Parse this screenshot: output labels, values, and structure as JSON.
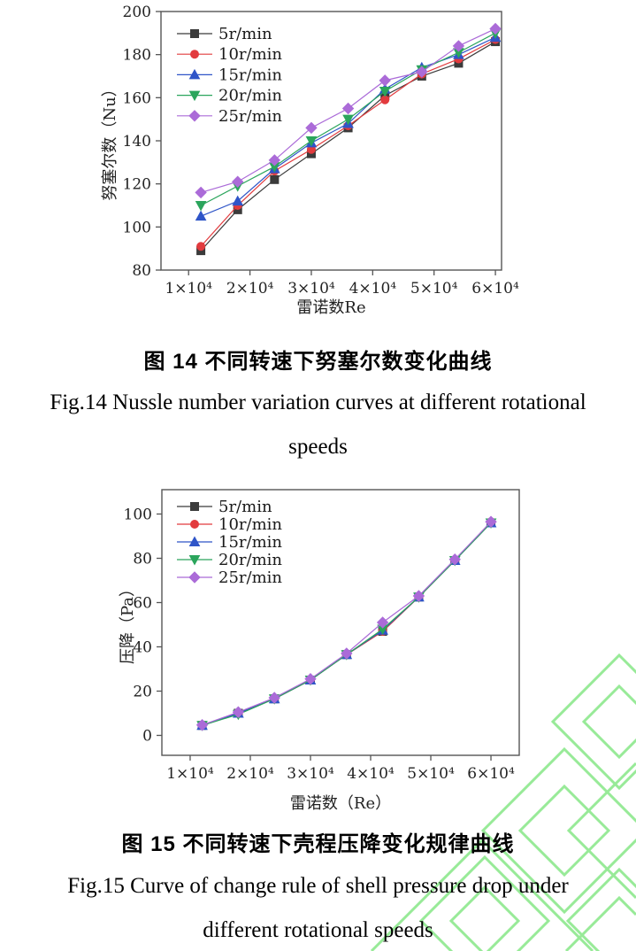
{
  "figure14": {
    "caption_cn": "图 14  不同转速下努塞尔数变化曲线",
    "caption_en_line1": "Fig.14 Nussle number variation curves at different rotational",
    "caption_en_line2": "speeds"
  },
  "figure15": {
    "caption_cn": "图 15  不同转速下壳程压降变化规律曲线",
    "caption_en_line1": "Fig.15 Curve of change rule of shell pressure drop under",
    "caption_en_line2": "different rotational speeds"
  },
  "watermark": {
    "color": "#8de88d"
  },
  "chart_data": [
    {
      "type": "line",
      "title": "",
      "xlabel": "雷诺数Re",
      "ylabel": "努塞尔数（Nu）",
      "grid": false,
      "legend_position": "top-left",
      "xlim": [
        5500,
        61000
      ],
      "ylim": [
        80,
        200
      ],
      "x_ticks": [
        {
          "value": 10000,
          "label": "1×10⁴"
        },
        {
          "value": 20000,
          "label": "2×10⁴"
        },
        {
          "value": 30000,
          "label": "3×10⁴"
        },
        {
          "value": 40000,
          "label": "4×10⁴"
        },
        {
          "value": 50000,
          "label": "5×10⁴"
        },
        {
          "value": 60000,
          "label": "6×10⁴"
        }
      ],
      "y_ticks": [
        {
          "value": 80,
          "label": "80"
        },
        {
          "value": 100,
          "label": "100"
        },
        {
          "value": 120,
          "label": "120"
        },
        {
          "value": 140,
          "label": "140"
        },
        {
          "value": 160,
          "label": "160"
        },
        {
          "value": 180,
          "label": "180"
        },
        {
          "value": 200,
          "label": "200"
        }
      ],
      "x": [
        12000,
        18000,
        24000,
        30000,
        36000,
        42000,
        48000,
        54000,
        60000
      ],
      "series": [
        {
          "name": "5r/min",
          "color": "#3b3b3b",
          "marker": "square",
          "values": [
            89,
            108,
            122,
            134,
            146,
            161,
            170,
            176,
            186
          ]
        },
        {
          "name": "10r/min",
          "color": "#e23b3e",
          "marker": "circle",
          "values": [
            91,
            110,
            126,
            136,
            147,
            159,
            171,
            178,
            187
          ]
        },
        {
          "name": "15r/min",
          "color": "#2f55c8",
          "marker": "triangle-up",
          "values": [
            105,
            112,
            127,
            139,
            148,
            164,
            174,
            180,
            188
          ]
        },
        {
          "name": "20r/min",
          "color": "#2ba55c",
          "marker": "triangle-down",
          "values": [
            110,
            119,
            128,
            140,
            150,
            163,
            173,
            181,
            190
          ]
        },
        {
          "name": "25r/min",
          "color": "#ab6bd8",
          "marker": "diamond",
          "values": [
            116,
            121,
            131,
            146,
            155,
            168,
            172,
            184,
            192
          ]
        }
      ]
    },
    {
      "type": "line",
      "title": "",
      "xlabel": "雷诺数（Re）",
      "ylabel": "压降（Pa）",
      "grid": false,
      "legend_position": "top-left",
      "xlim": [
        5300,
        64700
      ],
      "ylim": [
        -9,
        111
      ],
      "x_ticks": [
        {
          "value": 10000,
          "label": "1×10⁴"
        },
        {
          "value": 20000,
          "label": "2×10⁴"
        },
        {
          "value": 30000,
          "label": "3×10⁴"
        },
        {
          "value": 40000,
          "label": "4×10⁴"
        },
        {
          "value": 50000,
          "label": "5×10⁴"
        },
        {
          "value": 60000,
          "label": "6×10⁴"
        }
      ],
      "y_ticks": [
        {
          "value": 0,
          "label": "0"
        },
        {
          "value": 20,
          "label": "20"
        },
        {
          "value": 40,
          "label": "40"
        },
        {
          "value": 60,
          "label": "60"
        },
        {
          "value": 80,
          "label": "80"
        },
        {
          "value": 100,
          "label": "100"
        }
      ],
      "x": [
        12000,
        18000,
        24000,
        30000,
        36000,
        42000,
        48000,
        54000,
        60000
      ],
      "series": [
        {
          "name": "5r/min",
          "color": "#3b3b3b",
          "marker": "square",
          "values": [
            4.5,
            10,
            16.5,
            25,
            36.5,
            47,
            62.5,
            79,
            96
          ]
        },
        {
          "name": "10r/min",
          "color": "#e23b3e",
          "marker": "circle",
          "values": [
            4.5,
            10,
            16.5,
            25,
            36.5,
            47,
            62.5,
            79,
            96.5
          ]
        },
        {
          "name": "15r/min",
          "color": "#2f55c8",
          "marker": "triangle-up",
          "values": [
            4.5,
            10,
            16.5,
            25,
            36.5,
            47.5,
            62.5,
            79,
            96
          ]
        },
        {
          "name": "20r/min",
          "color": "#2ba55c",
          "marker": "triangle-down",
          "values": [
            4.5,
            9.5,
            16.5,
            25,
            36.5,
            48,
            62.5,
            79,
            96
          ]
        },
        {
          "name": "25r/min",
          "color": "#ab6bd8",
          "marker": "diamond",
          "values": [
            4.7,
            10.5,
            17,
            25.5,
            37,
            51,
            63,
            79.5,
            96.5
          ]
        }
      ]
    }
  ]
}
